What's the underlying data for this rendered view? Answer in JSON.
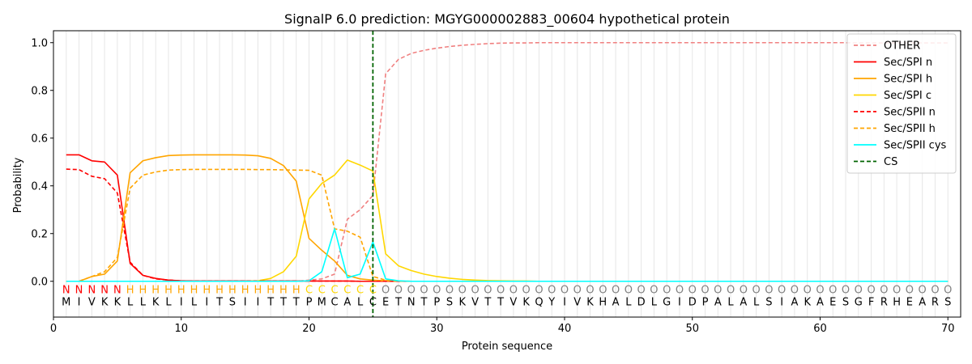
{
  "chart_data": {
    "type": "line",
    "title": "SignalP 6.0 prediction: MGYG000002883_00604 hypothetical protein",
    "xlabel": "Protein sequence",
    "ylabel": "Probability",
    "xlim": [
      0,
      71
    ],
    "ylim": [
      -0.15,
      1.05
    ],
    "xticks": [
      0,
      10,
      20,
      30,
      40,
      50,
      60,
      70
    ],
    "yticks": [
      0.0,
      0.2,
      0.4,
      0.6,
      0.8,
      1.0
    ],
    "xtick_labels": [
      "0",
      "10",
      "20",
      "30",
      "40",
      "50",
      "60",
      "70"
    ],
    "ytick_labels": [
      "0.0",
      "0.2",
      "0.4",
      "0.6",
      "0.8",
      "1.0"
    ],
    "grid": "vertical lines at each residue",
    "legend_placement": "top-right",
    "sequence": [
      "M",
      "I",
      "V",
      "K",
      "K",
      "L",
      "L",
      "K",
      "L",
      "I",
      "L",
      "I",
      "T",
      "S",
      "I",
      "I",
      "T",
      "T",
      "T",
      "P",
      "M",
      "C",
      "A",
      "L",
      "C",
      "E",
      "T",
      "N",
      "T",
      "P",
      "S",
      "K",
      "V",
      "T",
      "T",
      "V",
      "K",
      "Q",
      "Y",
      "I",
      "V",
      "K",
      "H",
      "A",
      "L",
      "D",
      "L",
      "G",
      "I",
      "D",
      "P",
      "A",
      "L",
      "A",
      "L",
      "S",
      "I",
      "A",
      "K",
      "A",
      "E",
      "S",
      "G",
      "F",
      "R",
      "H",
      "E",
      "A",
      "R",
      "S"
    ],
    "labels": [
      "N",
      "N",
      "N",
      "N",
      "N",
      "H",
      "H",
      "H",
      "H",
      "H",
      "H",
      "H",
      "H",
      "H",
      "H",
      "H",
      "H",
      "H",
      "H",
      "C",
      "C",
      "C",
      "C",
      "C",
      "C",
      "O",
      "O",
      "O",
      "O",
      "O",
      "O",
      "O",
      "O",
      "O",
      "O",
      "O",
      "O",
      "O",
      "O",
      "O",
      "O",
      "O",
      "O",
      "O",
      "O",
      "O",
      "O",
      "O",
      "O",
      "O",
      "O",
      "O",
      "O",
      "O",
      "O",
      "O",
      "O",
      "O",
      "O",
      "O",
      "O",
      "O",
      "O",
      "O",
      "O",
      "O",
      "O",
      "O",
      "O",
      "O"
    ],
    "label_colors": {
      "N": "#ff0000",
      "H": "#ffa500",
      "C": "#ffd700",
      "O": "#808080"
    },
    "cs_position": 25,
    "series": [
      {
        "name": "OTHER",
        "color": "#f08080",
        "dash": "dashed",
        "values": [
          0,
          0,
          0,
          0,
          0,
          0,
          0,
          0,
          0,
          0,
          0,
          0,
          0,
          0,
          0,
          0,
          0,
          0,
          0,
          0.005,
          0.01,
          0.03,
          0.26,
          0.3,
          0.36,
          0.87,
          0.93,
          0.955,
          0.968,
          0.977,
          0.984,
          0.989,
          0.993,
          0.996,
          0.998,
          0.999,
          0.999,
          1.0,
          1.0,
          1.0,
          1.0,
          1.0,
          1.0,
          1.0,
          1.0,
          1.0,
          1.0,
          1.0,
          1.0,
          1.0,
          1.0,
          1.0,
          1.0,
          1.0,
          1.0,
          1.0,
          1.0,
          1.0,
          1.0,
          1.0,
          1.0,
          1.0,
          0.999,
          0.999,
          0.999,
          0.999,
          0.999,
          0.999,
          0.999,
          0.999
        ]
      },
      {
        "name": "Sec/SPI n",
        "color": "#ff0000",
        "dash": "solid",
        "values": [
          0.53,
          0.53,
          0.505,
          0.5,
          0.445,
          0.075,
          0.025,
          0.012,
          0.005,
          0.002,
          0.001,
          0.001,
          0.001,
          0.001,
          0.001,
          0.001,
          0.001,
          0.001,
          0.001,
          0.001,
          0.001,
          0.001,
          0.001,
          0,
          0,
          0,
          0,
          0,
          0,
          0,
          0,
          0,
          0,
          0,
          0,
          0,
          0,
          0,
          0,
          0,
          0,
          0,
          0,
          0,
          0,
          0,
          0,
          0,
          0,
          0,
          0,
          0,
          0,
          0,
          0,
          0,
          0,
          0,
          0,
          0,
          0,
          0,
          0,
          0,
          0,
          0,
          0,
          0,
          0,
          0
        ]
      },
      {
        "name": "Sec/SPI h",
        "color": "#ffa500",
        "dash": "solid",
        "values": [
          0,
          0,
          0.02,
          0.03,
          0.085,
          0.455,
          0.505,
          0.518,
          0.527,
          0.529,
          0.53,
          0.53,
          0.53,
          0.53,
          0.529,
          0.526,
          0.515,
          0.485,
          0.42,
          0.18,
          0.13,
          0.085,
          0.025,
          0.01,
          0.005,
          0.002,
          0,
          0,
          0,
          0,
          0,
          0,
          0,
          0,
          0,
          0,
          0,
          0,
          0,
          0,
          0,
          0,
          0,
          0,
          0,
          0,
          0,
          0,
          0,
          0,
          0,
          0,
          0,
          0,
          0,
          0,
          0,
          0,
          0,
          0,
          0,
          0,
          0,
          0,
          0,
          0,
          0,
          0,
          0,
          0
        ]
      },
      {
        "name": "Sec/SPI c",
        "color": "#ffd700",
        "dash": "solid",
        "values": [
          0,
          0,
          0,
          0,
          0,
          0,
          0,
          0,
          0,
          0,
          0,
          0,
          0,
          0,
          0,
          0.002,
          0.012,
          0.04,
          0.105,
          0.345,
          0.41,
          0.445,
          0.508,
          0.487,
          0.462,
          0.115,
          0.065,
          0.045,
          0.03,
          0.02,
          0.013,
          0.008,
          0.005,
          0.003,
          0.002,
          0.001,
          0.001,
          0,
          0,
          0,
          0,
          0,
          0,
          0,
          0,
          0,
          0,
          0,
          0,
          0,
          0,
          0,
          0,
          0,
          0,
          0,
          0,
          0,
          0,
          0,
          0,
          0,
          0,
          0,
          0,
          0,
          0,
          0,
          0,
          0
        ]
      },
      {
        "name": "Sec/SPII n",
        "color": "#ff0000",
        "dash": "dashed",
        "values": [
          0.47,
          0.468,
          0.44,
          0.43,
          0.37,
          0.08,
          0.025,
          0.01,
          0.005,
          0.002,
          0.001,
          0.001,
          0.001,
          0.001,
          0.001,
          0.001,
          0.001,
          0.001,
          0.001,
          0.001,
          0.001,
          0.001,
          0.001,
          0,
          0,
          0,
          0,
          0,
          0,
          0,
          0,
          0,
          0,
          0,
          0,
          0,
          0,
          0,
          0,
          0,
          0,
          0,
          0,
          0,
          0,
          0,
          0,
          0,
          0,
          0,
          0,
          0,
          0,
          0,
          0,
          0,
          0,
          0,
          0,
          0,
          0,
          0,
          0,
          0,
          0,
          0,
          0,
          0,
          0,
          0
        ]
      },
      {
        "name": "Sec/SPII h",
        "color": "#ffa500",
        "dash": "dashed",
        "values": [
          0,
          0,
          0.02,
          0.04,
          0.1,
          0.39,
          0.445,
          0.458,
          0.466,
          0.468,
          0.469,
          0.469,
          0.469,
          0.469,
          0.469,
          0.468,
          0.468,
          0.467,
          0.466,
          0.465,
          0.445,
          0.22,
          0.21,
          0.185,
          0.02,
          0.005,
          0.001,
          0,
          0,
          0,
          0,
          0,
          0,
          0,
          0,
          0,
          0,
          0,
          0,
          0,
          0,
          0,
          0,
          0,
          0,
          0,
          0,
          0,
          0,
          0,
          0,
          0,
          0,
          0,
          0,
          0,
          0,
          0,
          0,
          0,
          0,
          0,
          0,
          0,
          0,
          0,
          0,
          0,
          0,
          0
        ]
      },
      {
        "name": "Sec/SPII cys",
        "color": "#00ffff",
        "dash": "solid",
        "values": [
          0,
          0,
          0,
          0,
          0,
          0,
          0,
          0,
          0,
          0,
          0,
          0,
          0,
          0,
          0,
          0,
          0,
          0,
          0,
          0.002,
          0.04,
          0.22,
          0.015,
          0.03,
          0.165,
          0.01,
          0.002,
          0,
          0,
          0,
          0,
          0,
          0,
          0,
          0,
          0,
          0,
          0,
          0,
          0,
          0,
          0,
          0,
          0,
          0,
          0,
          0,
          0,
          0,
          0,
          0,
          0,
          0,
          0,
          0,
          0,
          0,
          0,
          0,
          0,
          0,
          0,
          0,
          0,
          0,
          0,
          0,
          0,
          0,
          0
        ]
      }
    ],
    "legend": [
      {
        "name": "OTHER",
        "color": "#f08080",
        "dash": "dashed"
      },
      {
        "name": "Sec/SPI n",
        "color": "#ff0000",
        "dash": "solid"
      },
      {
        "name": "Sec/SPI h",
        "color": "#ffa500",
        "dash": "solid"
      },
      {
        "name": "Sec/SPI c",
        "color": "#ffd700",
        "dash": "solid"
      },
      {
        "name": "Sec/SPII n",
        "color": "#ff0000",
        "dash": "dashed"
      },
      {
        "name": "Sec/SPII h",
        "color": "#ffa500",
        "dash": "dashed"
      },
      {
        "name": "Sec/SPII cys",
        "color": "#00ffff",
        "dash": "solid"
      },
      {
        "name": "CS",
        "color": "#006400",
        "dash": "dashed"
      }
    ]
  }
}
